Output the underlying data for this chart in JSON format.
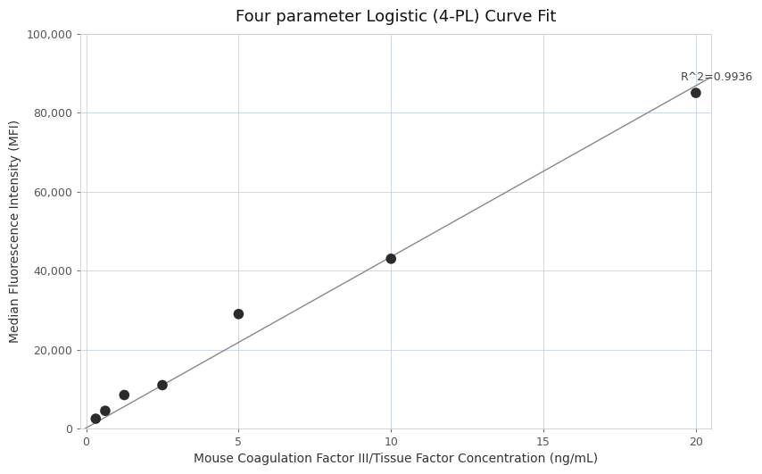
{
  "title": "Four parameter Logistic (4-PL) Curve Fit",
  "xlabel": "Mouse Coagulation Factor III/Tissue Factor Concentration (ng/mL)",
  "ylabel": "Median Fluorescence Intensity (MFI)",
  "x_data": [
    0.313,
    0.625,
    1.25,
    2.5,
    5.0,
    10.0,
    20.0
  ],
  "y_data": [
    2500,
    4500,
    8500,
    11000,
    29000,
    43000,
    85000
  ],
  "line_x": [
    -0.5,
    20.5
  ],
  "line_y": [
    -2000,
    89000
  ],
  "xlim": [
    -0.2,
    20.5
  ],
  "ylim": [
    0,
    100000
  ],
  "xticks": [
    0,
    5,
    10,
    15,
    20
  ],
  "yticks": [
    0,
    20000,
    40000,
    60000,
    80000,
    100000
  ],
  "ytick_labels": [
    "0",
    "20,000",
    "40,000",
    "60,000",
    "80,000",
    "100,000"
  ],
  "r_squared_text": "R^2=0.9936",
  "r_squared_x": 19.5,
  "r_squared_y": 87500,
  "dot_color": "#2b2b2b",
  "dot_size": 70,
  "line_color": "#888888",
  "line_width": 1.0,
  "grid_color": "#ccd6e8",
  "background_color": "#ffffff",
  "title_fontsize": 13,
  "label_fontsize": 10,
  "tick_fontsize": 9,
  "annotation_fontsize": 9
}
